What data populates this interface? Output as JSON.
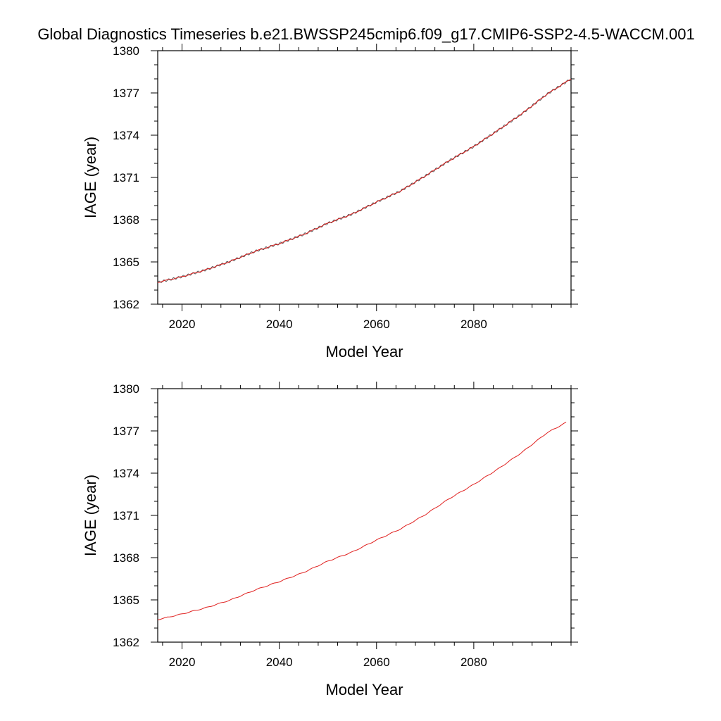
{
  "title": "Global Diagnostics Timeseries b.e21.BWSSP245cmip6.f09_g17.CMIP6-SSP2-4.5-WACCM.001",
  "colors": {
    "series_main": "#e0201f",
    "series_dark": "#555555",
    "axis": "#000000",
    "background": "#ffffff"
  },
  "chart_data": [
    {
      "type": "line",
      "panel": "top",
      "xlabel": "Model Year",
      "ylabel": "IAGE (year)",
      "xlim": [
        2015,
        2100
      ],
      "ylim": [
        1362,
        1380
      ],
      "x_ticks": [
        2020,
        2040,
        2060,
        2080
      ],
      "y_ticks": [
        1362,
        1365,
        1368,
        1371,
        1374,
        1377,
        1380
      ],
      "x_tick_labels": [
        "2020",
        "2040",
        "2060",
        "2080"
      ],
      "y_tick_labels": [
        "1362",
        "1365",
        "1368",
        "1371",
        "1374",
        "1377",
        "1380"
      ],
      "grid": false,
      "series": [
        {
          "style": "monthly (grey) with annual mean (red) overlaid",
          "x": [
            2015,
            2020,
            2025,
            2030,
            2035,
            2040,
            2045,
            2050,
            2055,
            2060,
            2065,
            2070,
            2075,
            2080,
            2085,
            2090,
            2095,
            2100
          ],
          "values": [
            1363.55,
            1363.95,
            1364.45,
            1365.05,
            1365.75,
            1366.3,
            1366.95,
            1367.75,
            1368.4,
            1369.25,
            1370.05,
            1371.1,
            1372.2,
            1373.2,
            1374.35,
            1375.55,
            1376.9,
            1378.0
          ]
        }
      ]
    },
    {
      "type": "line",
      "panel": "bottom",
      "xlabel": "Model Year",
      "ylabel": "IAGE (year)",
      "xlim": [
        2015,
        2100
      ],
      "ylim": [
        1362,
        1380
      ],
      "x_ticks": [
        2020,
        2040,
        2060,
        2080
      ],
      "y_ticks": [
        1362,
        1365,
        1368,
        1371,
        1374,
        1377,
        1380
      ],
      "x_tick_labels": [
        "2020",
        "2040",
        "2060",
        "2080"
      ],
      "y_tick_labels": [
        "1362",
        "1365",
        "1368",
        "1371",
        "1374",
        "1377",
        "1380"
      ],
      "grid": false,
      "series": [
        {
          "style": "annual mean (red)",
          "x": [
            2015,
            2020,
            2025,
            2030,
            2035,
            2040,
            2045,
            2050,
            2055,
            2060,
            2065,
            2070,
            2075,
            2080,
            2085,
            2090,
            2095,
            2099
          ],
          "values": [
            1363.6,
            1364.0,
            1364.45,
            1365.0,
            1365.7,
            1366.3,
            1366.95,
            1367.75,
            1368.4,
            1369.25,
            1370.05,
            1371.05,
            1372.2,
            1373.2,
            1374.3,
            1375.5,
            1376.85,
            1377.6
          ]
        }
      ]
    }
  ]
}
